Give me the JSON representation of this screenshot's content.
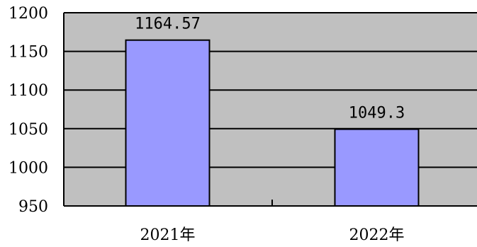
{
  "chart_data": {
    "type": "bar",
    "categories": [
      "2021年",
      "2022年"
    ],
    "values": [
      1164.57,
      1049.3
    ],
    "data_labels": [
      "1164.57",
      "1049.3"
    ],
    "ylim": [
      950,
      1200
    ],
    "y_ticks": [
      950,
      1000,
      1050,
      1100,
      1150,
      1200
    ],
    "y_tick_labels": [
      "950",
      "1000",
      "1050",
      "1100",
      "1150",
      "1200"
    ],
    "grid": true,
    "legend": "none",
    "colors": {
      "plot_background": "#c0c0c0",
      "bar_fill": "#9999ff",
      "bar_stroke": "#000000",
      "gridline": "#000000"
    }
  }
}
